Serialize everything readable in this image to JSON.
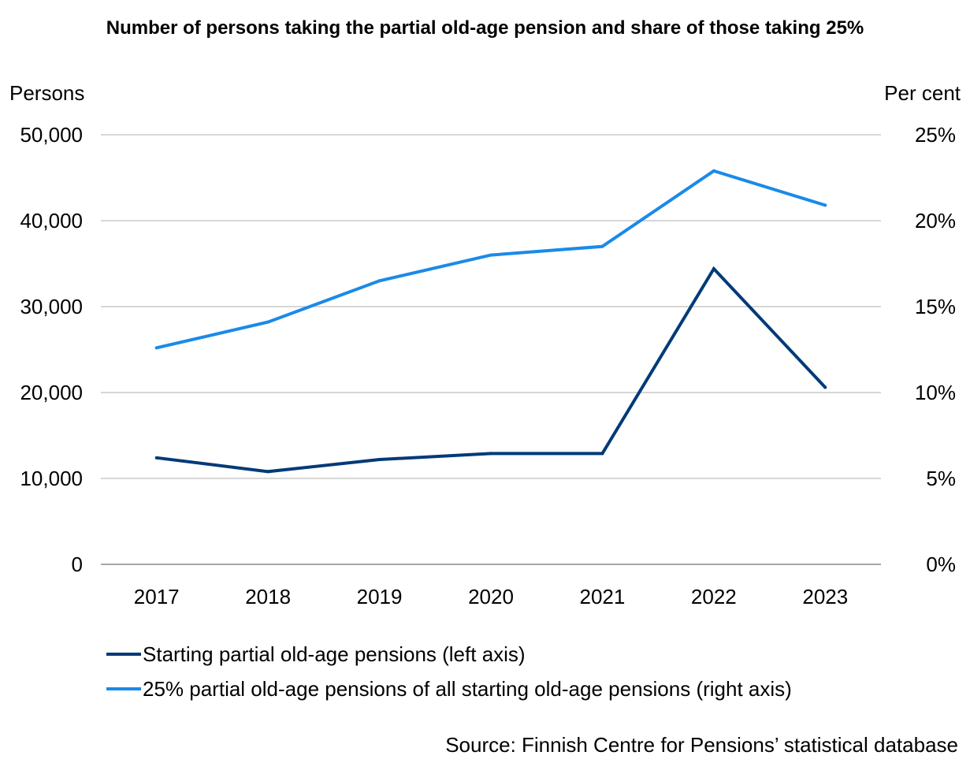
{
  "chart_data": {
    "type": "line",
    "title": "Number of persons taking the partial old-age pension and share of those taking 25%",
    "left_axis_label": "Persons",
    "right_axis_label": "Per cent",
    "x": [
      "2017",
      "2018",
      "2019",
      "2020",
      "2021",
      "2022",
      "2023"
    ],
    "left_ylim": [
      0,
      50000
    ],
    "right_ylim": [
      0,
      25
    ],
    "left_ticks": [
      "0",
      "10,000",
      "20,000",
      "30,000",
      "40,000",
      "50,000"
    ],
    "right_ticks": [
      "0%",
      "5%",
      "10%",
      "15%",
      "20%",
      "25%"
    ],
    "grid": true,
    "legend_position": "bottom-left",
    "series": [
      {
        "name": "Starting partial old-age pensions (left axis)",
        "axis": "left",
        "color": "#003a78",
        "values": [
          12400,
          10800,
          12200,
          12900,
          12900,
          34400,
          20600
        ]
      },
      {
        "name": "25% partial old-age pensions of all starting old-age pensions (right axis)",
        "axis": "right",
        "color": "#1a8ae8",
        "values": [
          12.6,
          14.1,
          16.5,
          18.0,
          18.5,
          22.9,
          20.9
        ]
      }
    ]
  },
  "source": "Source: Finnish Centre for Pensions’ statistical database"
}
